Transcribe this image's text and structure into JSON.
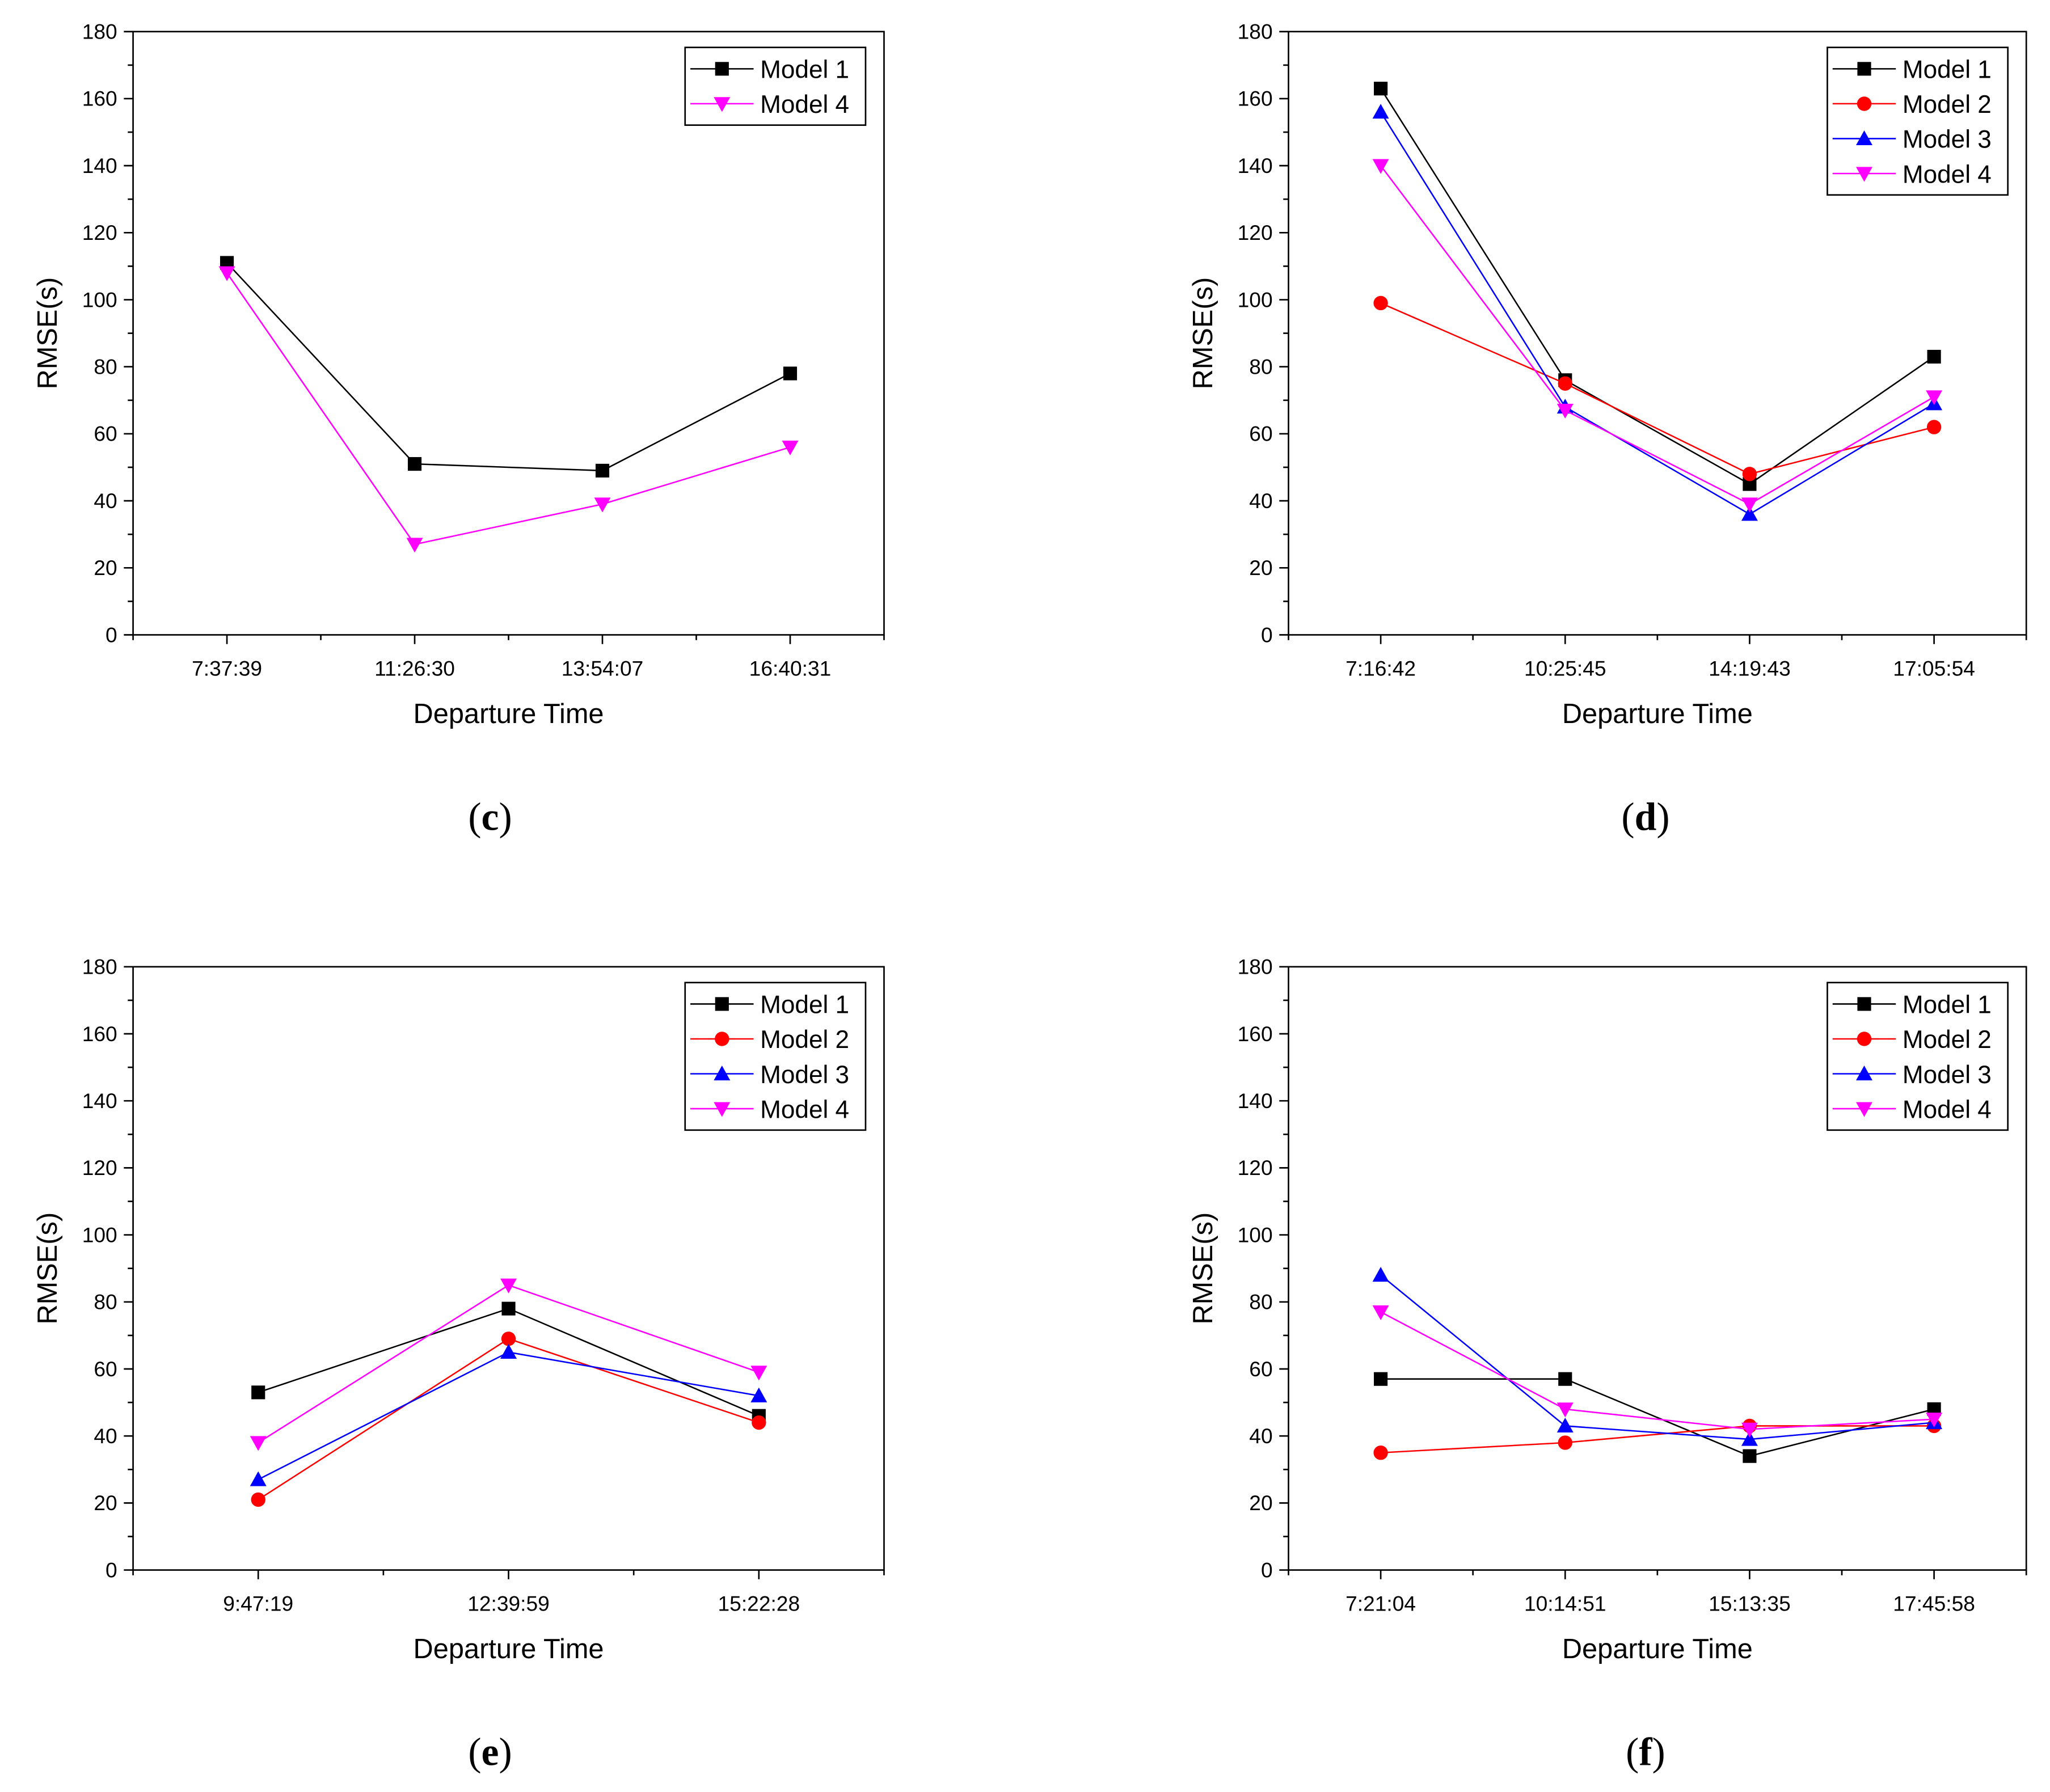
{
  "colors": {
    "Model 1": "#000000",
    "Model 2": "#ff0000",
    "Model 3": "#0000ff",
    "Model 4": "#ff00ff",
    "axis": "#000000"
  },
  "markers": {
    "Model 1": "square",
    "Model 2": "circle",
    "Model 3": "triangle-up",
    "Model 4": "triangle-down"
  },
  "chart_data": [
    {
      "type": "line",
      "panel": "c",
      "caption_prefix": "(",
      "caption_letter": "c",
      "caption_suffix": ")",
      "xlabel": "Departure Time",
      "ylabel": "RMSE(s)",
      "ylim": [
        0,
        180
      ],
      "yticks": [
        0,
        20,
        40,
        60,
        80,
        100,
        120,
        140,
        160,
        180
      ],
      "categories": [
        "7:37:39",
        "11:26:30",
        "13:54:07",
        "16:40:31"
      ],
      "legend_position": "top-right",
      "series": [
        {
          "name": "Model 1",
          "values": [
            111,
            51,
            49,
            78
          ]
        },
        {
          "name": "Model 4",
          "values": [
            108,
            27,
            39,
            56
          ]
        }
      ]
    },
    {
      "type": "line",
      "panel": "d",
      "caption_prefix": "(",
      "caption_letter": "d",
      "caption_suffix": ")",
      "xlabel": "Departure Time",
      "ylabel": "RMSE(s)",
      "ylim": [
        0,
        180
      ],
      "yticks": [
        0,
        20,
        40,
        60,
        80,
        100,
        120,
        140,
        160,
        180
      ],
      "categories": [
        "7:16:42",
        "10:25:45",
        "14:19:43",
        "17:05:54"
      ],
      "legend_position": "top-right",
      "series": [
        {
          "name": "Model 1",
          "values": [
            163,
            76,
            45,
            83
          ]
        },
        {
          "name": "Model 2",
          "values": [
            99,
            75,
            48,
            62
          ]
        },
        {
          "name": "Model 3",
          "values": [
            156,
            68,
            36,
            69
          ]
        },
        {
          "name": "Model 4",
          "values": [
            140,
            67,
            39,
            71
          ]
        }
      ]
    },
    {
      "type": "line",
      "panel": "e",
      "caption_prefix": "(",
      "caption_letter": "e",
      "caption_suffix": ")",
      "xlabel": "Departure Time",
      "ylabel": "RMSE(s)",
      "ylim": [
        0,
        180
      ],
      "yticks": [
        0,
        20,
        40,
        60,
        80,
        100,
        120,
        140,
        160,
        180
      ],
      "categories": [
        "9:47:19",
        "12:39:59",
        "15:22:28"
      ],
      "legend_position": "top-right",
      "series": [
        {
          "name": "Model 1",
          "values": [
            53,
            78,
            46
          ]
        },
        {
          "name": "Model 2",
          "values": [
            21,
            69,
            44
          ]
        },
        {
          "name": "Model 3",
          "values": [
            27,
            65,
            52
          ]
        },
        {
          "name": "Model 4",
          "values": [
            38,
            85,
            59
          ]
        }
      ]
    },
    {
      "type": "line",
      "panel": "f",
      "caption_prefix": "(",
      "caption_letter": "f",
      "caption_suffix": ")",
      "xlabel": "Departure Time",
      "ylabel": "RMSE(s)",
      "ylim": [
        0,
        180
      ],
      "yticks": [
        0,
        20,
        40,
        60,
        80,
        100,
        120,
        140,
        160,
        180
      ],
      "categories": [
        "7:21:04",
        "10:14:51",
        "15:13:35",
        "17:45:58"
      ],
      "legend_position": "top-right",
      "series": [
        {
          "name": "Model 1",
          "values": [
            57,
            57,
            34,
            48
          ]
        },
        {
          "name": "Model 2",
          "values": [
            35,
            38,
            43,
            43
          ]
        },
        {
          "name": "Model 3",
          "values": [
            88,
            43,
            39,
            44
          ]
        },
        {
          "name": "Model 4",
          "values": [
            77,
            48,
            42,
            45
          ]
        }
      ]
    }
  ]
}
